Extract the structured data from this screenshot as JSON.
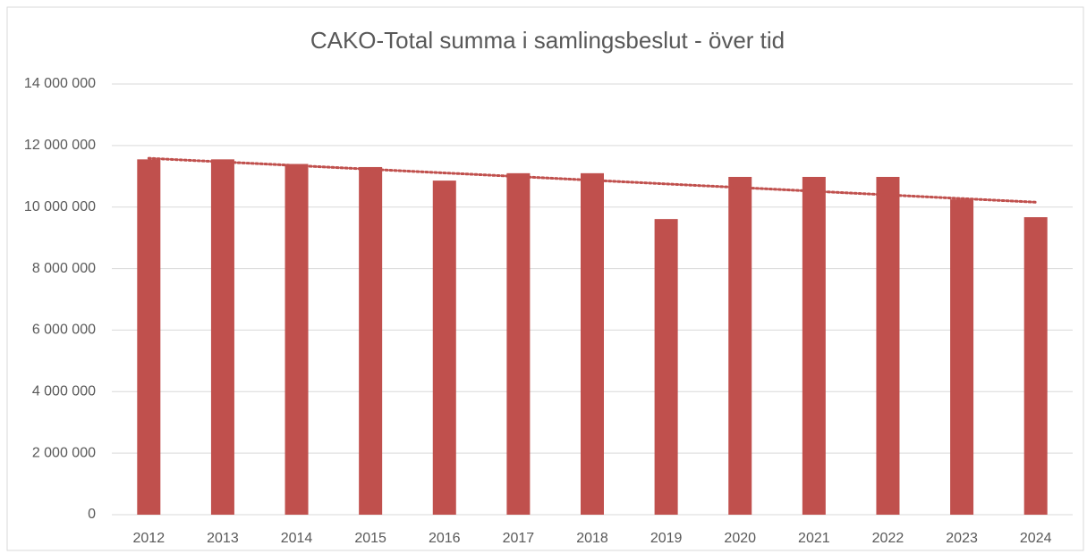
{
  "chart_data": {
    "type": "bar",
    "title": "CAKO-Total summa i samlingsbeslut - över tid",
    "categories": [
      "2012",
      "2013",
      "2014",
      "2015",
      "2016",
      "2017",
      "2018",
      "2019",
      "2020",
      "2021",
      "2022",
      "2023",
      "2024"
    ],
    "values": [
      11550000,
      11550000,
      11400000,
      11300000,
      10860000,
      11100000,
      11100000,
      9610000,
      10980000,
      10980000,
      10980000,
      10250000,
      9670000
    ],
    "color": "#c0504d",
    "ylim": [
      0,
      14000000
    ],
    "yticks": [
      0,
      {
        "value": 2000000,
        "label": "2 000 000"
      },
      {
        "value": 4000000,
        "label": "4 000 000"
      },
      {
        "value": 6000000,
        "label": "6 000 000"
      },
      {
        "value": 8000000,
        "label": "8 000 000"
      },
      {
        "value": 10000000,
        "label": "10 000 000"
      },
      {
        "value": 12000000,
        "label": "12 000 000"
      },
      {
        "value": 14000000,
        "label": "14 000 000"
      }
    ],
    "grid": true,
    "trendline": "linear"
  }
}
